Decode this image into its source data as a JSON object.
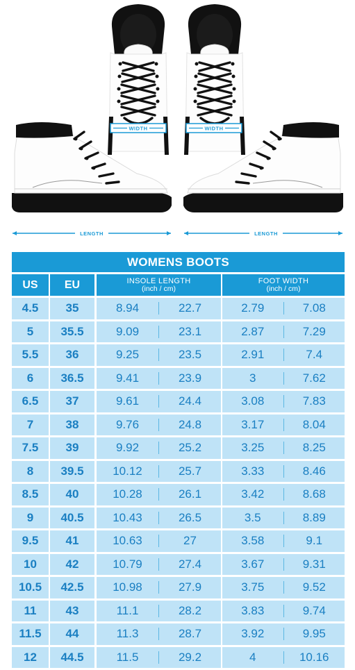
{
  "illustration": {
    "width_label": "WIDTH",
    "length_label": "LENGTH"
  },
  "table": {
    "title": "WOMENS BOOTS",
    "headers": {
      "us": "US",
      "eu": "EU",
      "insole": "INSOLE LENGTH",
      "insole_units": "(inch / cm)",
      "foot_width": "FOOT WIDTH",
      "foot_width_units": "(inch / cm)"
    },
    "rows": [
      {
        "us": "4.5",
        "eu": "35",
        "insole_in": "8.94",
        "insole_cm": "22.7",
        "width_in": "2.79",
        "width_cm": "7.08"
      },
      {
        "us": "5",
        "eu": "35.5",
        "insole_in": "9.09",
        "insole_cm": "23.1",
        "width_in": "2.87",
        "width_cm": "7.29"
      },
      {
        "us": "5.5",
        "eu": "36",
        "insole_in": "9.25",
        "insole_cm": "23.5",
        "width_in": "2.91",
        "width_cm": "7.4"
      },
      {
        "us": "6",
        "eu": "36.5",
        "insole_in": "9.41",
        "insole_cm": "23.9",
        "width_in": "3",
        "width_cm": "7.62"
      },
      {
        "us": "6.5",
        "eu": "37",
        "insole_in": "9.61",
        "insole_cm": "24.4",
        "width_in": "3.08",
        "width_cm": "7.83"
      },
      {
        "us": "7",
        "eu": "38",
        "insole_in": "9.76",
        "insole_cm": "24.8",
        "width_in": "3.17",
        "width_cm": "8.04"
      },
      {
        "us": "7.5",
        "eu": "39",
        "insole_in": "9.92",
        "insole_cm": "25.2",
        "width_in": "3.25",
        "width_cm": "8.25"
      },
      {
        "us": "8",
        "eu": "39.5",
        "insole_in": "10.12",
        "insole_cm": "25.7",
        "width_in": "3.33",
        "width_cm": "8.46"
      },
      {
        "us": "8.5",
        "eu": "40",
        "insole_in": "10.28",
        "insole_cm": "26.1",
        "width_in": "3.42",
        "width_cm": "8.68"
      },
      {
        "us": "9",
        "eu": "40.5",
        "insole_in": "10.43",
        "insole_cm": "26.5",
        "width_in": "3.5",
        "width_cm": "8.89"
      },
      {
        "us": "9.5",
        "eu": "41",
        "insole_in": "10.63",
        "insole_cm": "27",
        "width_in": "3.58",
        "width_cm": "9.1"
      },
      {
        "us": "10",
        "eu": "42",
        "insole_in": "10.79",
        "insole_cm": "27.4",
        "width_in": "3.67",
        "width_cm": "9.31"
      },
      {
        "us": "10.5",
        "eu": "42.5",
        "insole_in": "10.98",
        "insole_cm": "27.9",
        "width_in": "3.75",
        "width_cm": "9.52"
      },
      {
        "us": "11",
        "eu": "43",
        "insole_in": "11.1",
        "insole_cm": "28.2",
        "width_in": "3.83",
        "width_cm": "9.74"
      },
      {
        "us": "11.5",
        "eu": "44",
        "insole_in": "11.3",
        "insole_cm": "28.7",
        "width_in": "3.92",
        "width_cm": "9.95"
      },
      {
        "us": "12",
        "eu": "44.5",
        "insole_in": "11.5",
        "insole_cm": "29.2",
        "width_in": "4",
        "width_cm": "10.16"
      }
    ]
  },
  "colors": {
    "accent": "#1a9ad6",
    "row_bg": "#bfe3f7",
    "row_text": "#1a7fc2"
  }
}
